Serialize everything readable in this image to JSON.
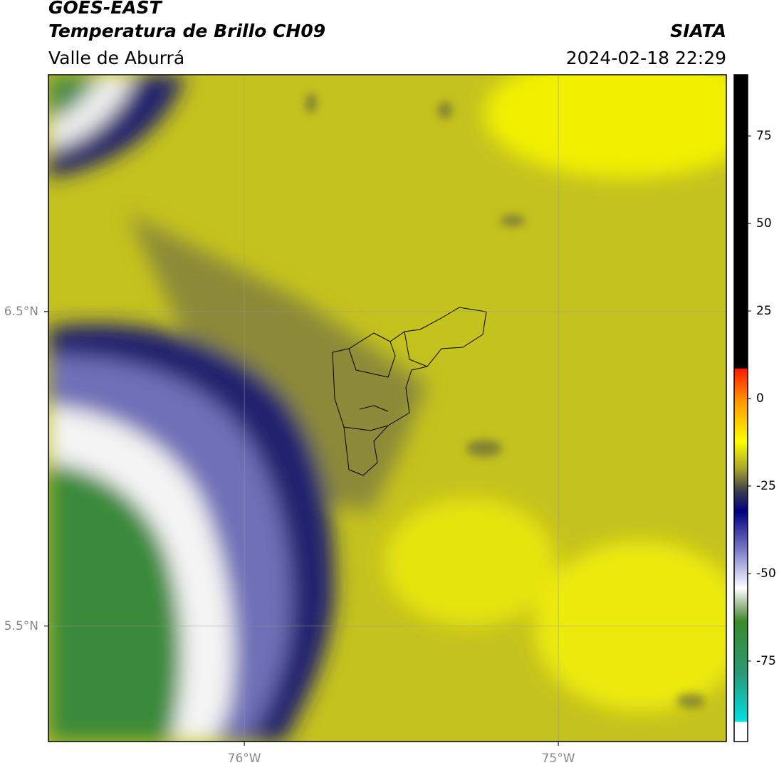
{
  "header": {
    "title": "GOES-EAST",
    "subtitle": "Temperatura de Brillo CH09",
    "region": "Valle de Aburrá",
    "source": "SIATA",
    "datetime": "2024-02-18 22:29"
  },
  "map": {
    "lon_range": [
      -76.624,
      -74.465
    ],
    "lat_range": [
      5.133,
      7.253
    ],
    "lon_ticks": [
      {
        "value": -76,
        "label": "76°W"
      },
      {
        "value": -75,
        "label": "75°W"
      }
    ],
    "lat_ticks": [
      {
        "value": 6.5,
        "label": "6.5°N"
      },
      {
        "value": 5.5,
        "label": "5.5°N"
      }
    ],
    "grid": true
  },
  "colorbar": {
    "range": [
      -98,
      92.5
    ],
    "ticks": [
      75,
      50,
      25,
      0,
      -25,
      -50,
      -75
    ]
  }
}
